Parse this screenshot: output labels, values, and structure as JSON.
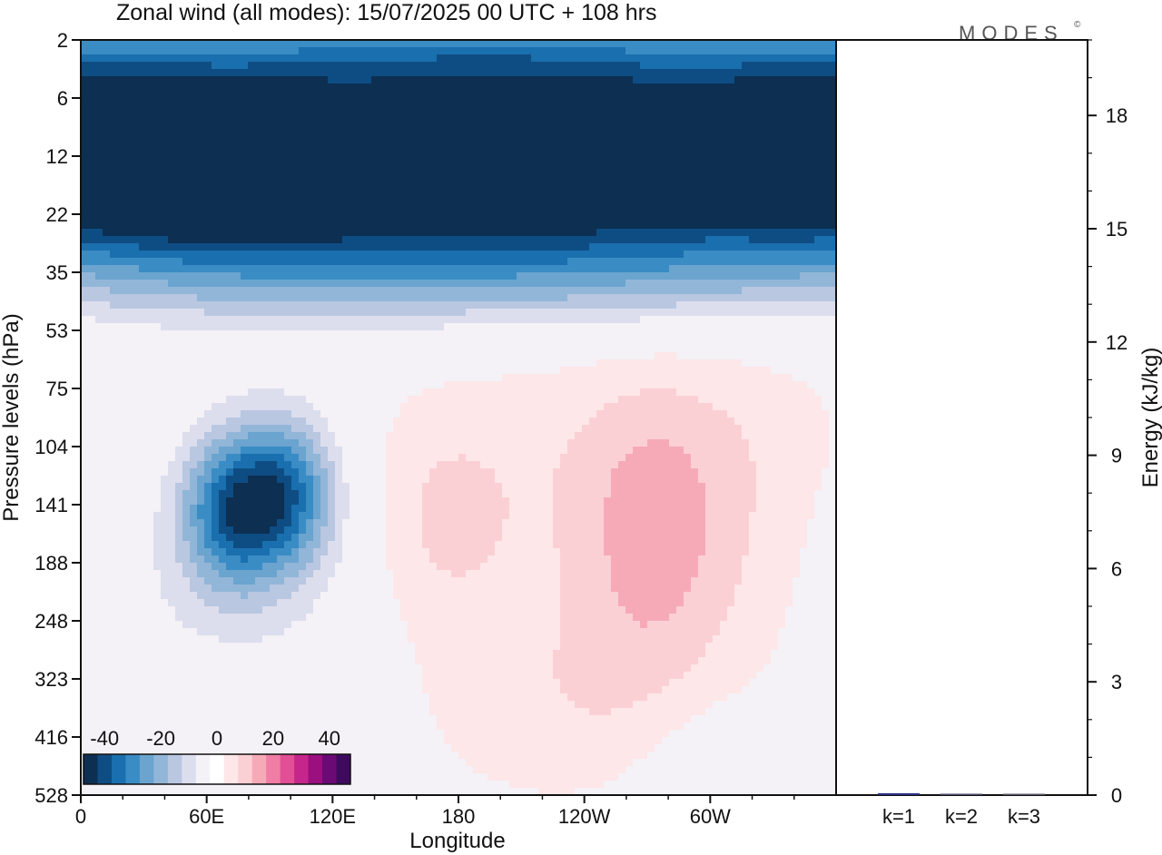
{
  "title": "Zonal wind (all modes):  15/07/2025  00 UTC  + 108 hrs",
  "logo": "MODES",
  "logo_mark": "©",
  "chart_data": [
    {
      "type": "heatmap",
      "xlabel": "Longitude",
      "ylabel": "Pressure levels (hPa)",
      "x_ticks": [
        "0",
        "60E",
        "120E",
        "180",
        "120W",
        "60W"
      ],
      "x_tick_degrees": [
        0,
        60,
        120,
        180,
        240,
        300
      ],
      "xlim": [
        0,
        360
      ],
      "y_ticks": [
        "2",
        "6",
        "12",
        "22",
        "35",
        "53",
        "75",
        "104",
        "141",
        "188",
        "248",
        "323",
        "416",
        "528"
      ],
      "y_scale": "categorical pressure levels (top to bottom)",
      "colorbar": {
        "ticks": [
          "-40",
          "-20",
          "0",
          "20",
          "40"
        ],
        "tick_values": [
          -40,
          -20,
          0,
          20,
          40
        ],
        "colors": [
          "#0c2f52",
          "#0e4d83",
          "#1a6fae",
          "#3a8cc4",
          "#6aa4cf",
          "#92b6d8",
          "#b9c7e1",
          "#dcdeee",
          "#f4f1f7",
          "#ffffff",
          "#fde7e8",
          "#fbd0d5",
          "#f6aab8",
          "#ef7da4",
          "#e24f96",
          "#c6268b",
          "#9b0f7f",
          "#6b0a75",
          "#3e0a5e"
        ]
      },
      "fields": [
        {
          "lon": 100,
          "lev": 0.5,
          "u": -18,
          "sx": 140,
          "sy": 0.8
        },
        {
          "lon": 250,
          "lev": 0.3,
          "u": -14,
          "sx": 120,
          "sy": 0.7
        },
        {
          "lon": 180,
          "lev": 2.2,
          "u": -30,
          "sx": 170,
          "sy": 1.2
        },
        {
          "lon": 40,
          "lev": 2.0,
          "u": -22,
          "sx": 60,
          "sy": 0.9
        },
        {
          "lon": 310,
          "lev": 2.2,
          "u": -26,
          "sx": 90,
          "sy": 1.0
        },
        {
          "lon": 120,
          "lev": 2.8,
          "u": -16,
          "sx": 90,
          "sy": 0.8
        },
        {
          "lon": 230,
          "lev": 1.8,
          "u": -10,
          "sx": 80,
          "sy": 0.6
        },
        {
          "lon": 180,
          "lev": 4.0,
          "u": -14,
          "sx": 220,
          "sy": 0.7
        },
        {
          "lon": 72,
          "lev": 8.1,
          "u": -30,
          "sx": 16,
          "sy": 0.9
        },
        {
          "lon": 98,
          "lev": 7.8,
          "u": -28,
          "sx": 16,
          "sy": 0.9
        },
        {
          "lon": 80,
          "lev": 8.8,
          "u": -10,
          "sx": 55,
          "sy": 2.0
        },
        {
          "lon": 170,
          "lev": 8.3,
          "u": 7,
          "sx": 25,
          "sy": 1.2
        },
        {
          "lon": 180,
          "lev": 10.0,
          "u": 4,
          "sx": 60,
          "sy": 2.5
        },
        {
          "lon": 272,
          "lev": 8.6,
          "u": 9,
          "sx": 25,
          "sy": 1.6
        },
        {
          "lon": 300,
          "lev": 8.6,
          "u": 6,
          "sx": 50,
          "sy": 2.2
        },
        {
          "lon": 245,
          "lev": 11.3,
          "u": 4,
          "sx": 30,
          "sy": 1.0
        },
        {
          "lon": 260,
          "lev": 6.8,
          "u": 3,
          "sx": 120,
          "sy": 1.2
        },
        {
          "lon": 65,
          "lev": 11.8,
          "u": 3,
          "sx": 15,
          "sy": 0.7
        },
        {
          "lon": 305,
          "lev": 12.4,
          "u": -4,
          "sx": 30,
          "sy": 0.8
        },
        {
          "lon": 10,
          "lev": 11.5,
          "u": -3,
          "sx": 20,
          "sy": 1.5
        }
      ]
    },
    {
      "type": "bar",
      "categories": [
        "k=1",
        "k=2",
        "k=3"
      ],
      "values": [
        0.05,
        0.01,
        0.005
      ],
      "ylabel": "Energy (kJ/kg)",
      "y_ticks": [
        0,
        3,
        6,
        9,
        12,
        15,
        18
      ],
      "ylim": [
        0,
        20
      ],
      "bar_colors": [
        "#2b2f8a",
        "#4a4a6a",
        "#5a5a6a"
      ]
    }
  ]
}
